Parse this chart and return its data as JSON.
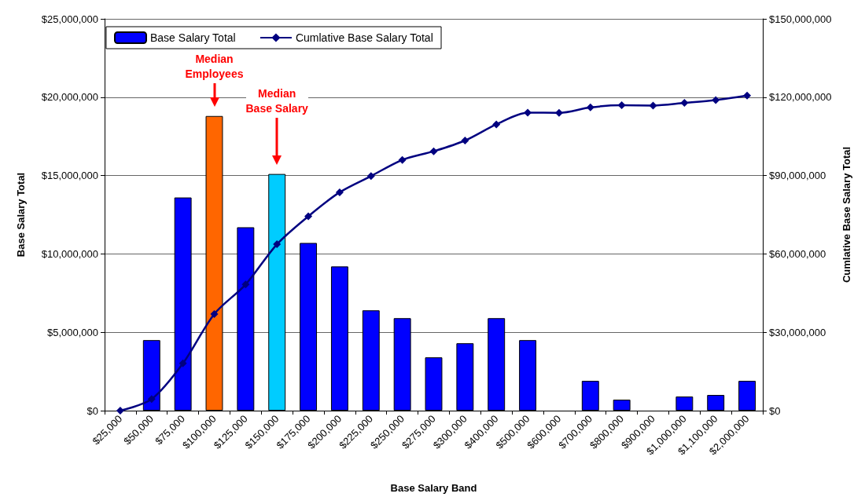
{
  "chart_data": {
    "type": "bar",
    "xlabel": "Base Salary Band",
    "ylabel": "Base Salary Total",
    "y2label": "Cumlative Base Salary Total",
    "categories": [
      "$25,000",
      "$50,000",
      "$75,000",
      "$100,000",
      "$125,000",
      "$150,000",
      "$175,000",
      "$200,000",
      "$225,000",
      "$250,000",
      "$275,000",
      "$300,000",
      "$400,000",
      "$500,000",
      "$600,000",
      "$700,000",
      "$800,000",
      "$900,000",
      "$1,000,000",
      "$1,100,000",
      "$2,000,000"
    ],
    "series": [
      {
        "name": "Base Salary Total",
        "color": "#0000ff",
        "colors": [
          "#0000ff",
          "#0000ff",
          "#0000ff",
          "#ff6600",
          "#0000ff",
          "#00ccff",
          "#0000ff",
          "#0000ff",
          "#0000ff",
          "#0000ff",
          "#0000ff",
          "#0000ff",
          "#0000ff",
          "#0000ff",
          "#0000ff",
          "#0000ff",
          "#0000ff",
          "#0000ff",
          "#0000ff",
          "#0000ff",
          "#0000ff"
        ],
        "values": [
          0,
          4500000,
          13600000,
          18800000,
          11700000,
          15100000,
          10700000,
          9200000,
          6400000,
          5900000,
          3400000,
          4300000,
          5900000,
          4500000,
          0,
          1900000,
          700000,
          0,
          900000,
          1000000,
          1900000
        ]
      },
      {
        "name": "Cumlative Base Salary Total",
        "type": "line",
        "axis": "y2",
        "color": "#000080",
        "marker": "diamond",
        "values": [
          0,
          4400000,
          18100000,
          37000000,
          48300000,
          63700000,
          74400000,
          83600000,
          89800000,
          96000000,
          99300000,
          103400000,
          109600000,
          114100000,
          114000000,
          116100000,
          116900000,
          116800000,
          117800000,
          118900000,
          120600000
        ]
      }
    ],
    "ylim": [
      0,
      25000000
    ],
    "yticks": [
      {
        "value": 0,
        "label": "$0"
      },
      {
        "value": 5000000,
        "label": "$5,000,000"
      },
      {
        "value": 10000000,
        "label": "$10,000,000"
      },
      {
        "value": 15000000,
        "label": "$15,000,000"
      },
      {
        "value": 20000000,
        "label": "$20,000,000"
      },
      {
        "value": 25000000,
        "label": "$25,000,000"
      }
    ],
    "y2lim": [
      0,
      150000000
    ],
    "y2ticks": [
      {
        "value": 0,
        "label": "$0"
      },
      {
        "value": 30000000,
        "label": "$30,000,000"
      },
      {
        "value": 60000000,
        "label": "$60,000,000"
      },
      {
        "value": 90000000,
        "label": "$90,000,000"
      },
      {
        "value": 120000000,
        "label": "$120,000,000"
      },
      {
        "value": 150000000,
        "label": "$150,000,000"
      }
    ],
    "grid": "y",
    "legend": "top left",
    "annotations": [
      "Median\nEmployees",
      "Median\nBase Salary"
    ]
  }
}
